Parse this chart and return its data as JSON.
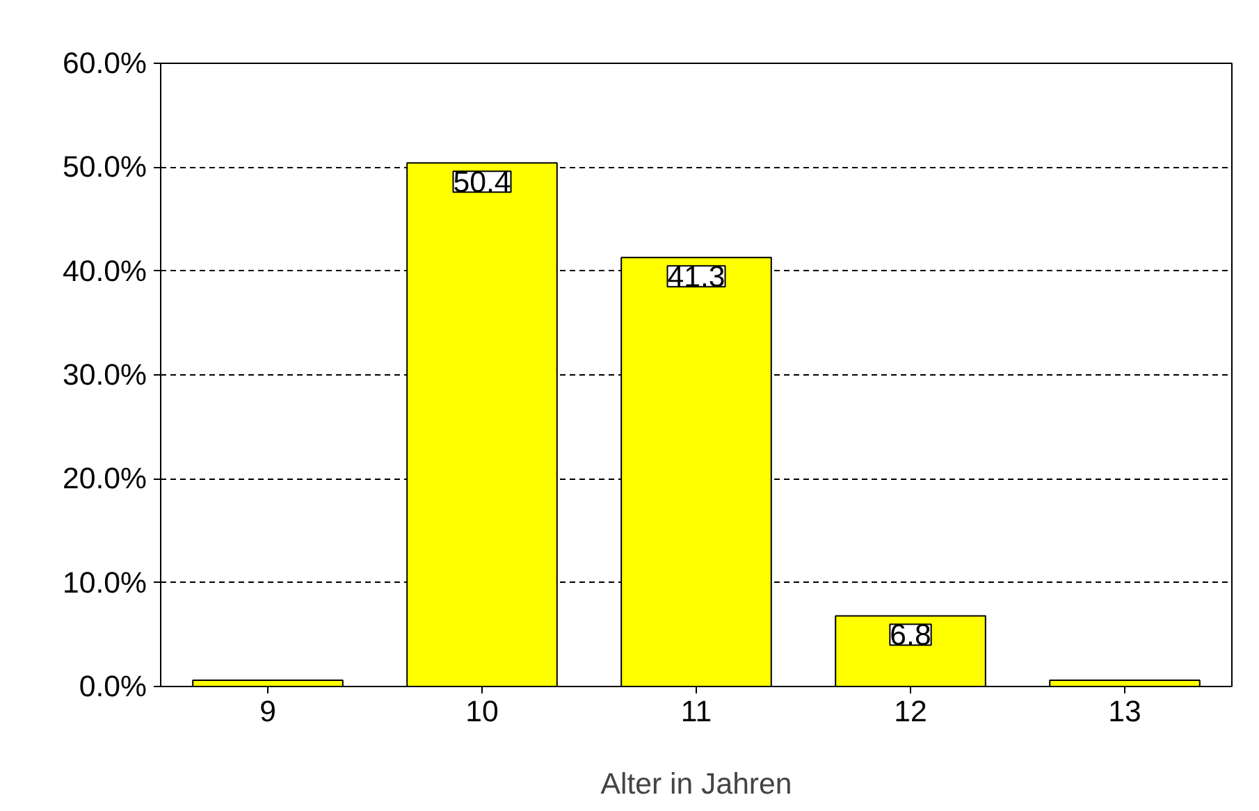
{
  "chart_data": {
    "type": "bar",
    "xlabel": "Alter in Jahren",
    "categories": [
      "9",
      "10",
      "11",
      "12",
      "13"
    ],
    "values": [
      0.6,
      50.4,
      41.3,
      6.8,
      0.6
    ],
    "value_labels": [
      null,
      "50.4",
      "41.3",
      "6.8",
      null
    ],
    "color": "#ffff00",
    "ylim": [
      0,
      60
    ],
    "yticks": [
      {
        "value": 0,
        "label": "0.0%"
      },
      {
        "value": 10,
        "label": "10.0%"
      },
      {
        "value": 20,
        "label": "20.0%"
      },
      {
        "value": 30,
        "label": "30.0%"
      },
      {
        "value": 40,
        "label": "40.0%"
      },
      {
        "value": 50,
        "label": "50.0%"
      },
      {
        "value": 60,
        "label": "60.0%"
      }
    ],
    "grid": "y",
    "line_style": "dashed"
  }
}
